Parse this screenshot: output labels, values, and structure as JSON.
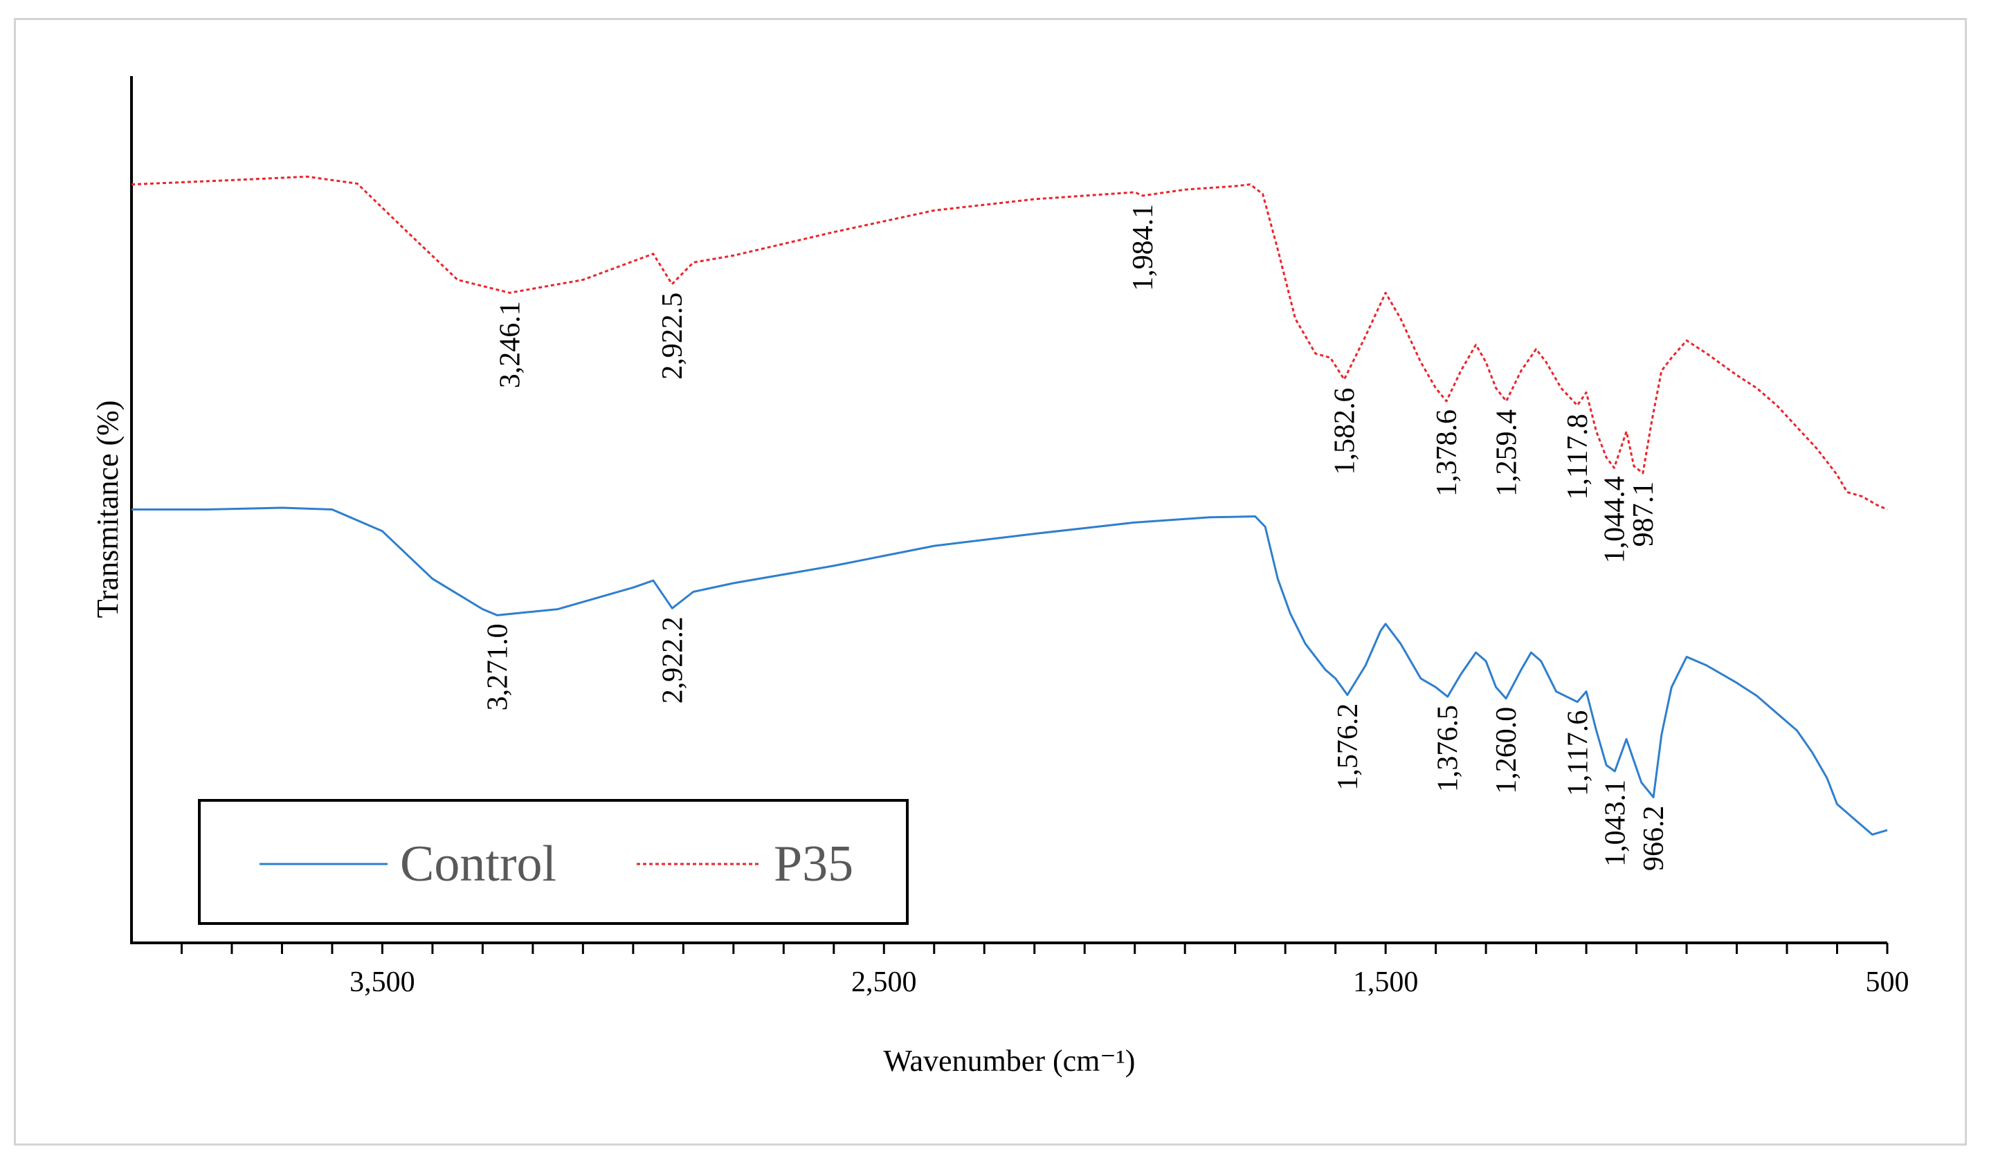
{
  "chart_data": {
    "type": "line",
    "title": "",
    "xlabel": "Wavenumber (cm⁻¹)",
    "ylabel": "Transmitance (%)",
    "xlim": [
      4000,
      500
    ],
    "x_reversed": true,
    "x_ticks": [
      3500,
      2500,
      1500,
      500
    ],
    "x_tick_labels": [
      "3,500",
      "2,500",
      "1,500",
      "500"
    ],
    "x_minor_step": 100,
    "ylim": [
      0,
      100
    ],
    "y_ticks_shown": false,
    "legend": {
      "position": "bottom-left",
      "entries": [
        "Control",
        "P35"
      ]
    },
    "series": [
      {
        "name": "P35",
        "color": "#e8262c",
        "style": "dotted",
        "points": [
          [
            4000,
            87.5
          ],
          [
            3800,
            88.0
          ],
          [
            3650,
            88.4
          ],
          [
            3550,
            87.6
          ],
          [
            3450,
            82.0
          ],
          [
            3350,
            76.5
          ],
          [
            3246.1,
            75.0
          ],
          [
            3100,
            76.5
          ],
          [
            2960,
            79.5
          ],
          [
            2922.5,
            76.0
          ],
          [
            2880,
            78.5
          ],
          [
            2800,
            79.3
          ],
          [
            2600,
            82.0
          ],
          [
            2400,
            84.5
          ],
          [
            2200,
            85.8
          ],
          [
            2000,
            86.6
          ],
          [
            1984.1,
            86.2
          ],
          [
            1900,
            86.9
          ],
          [
            1800,
            87.3
          ],
          [
            1770,
            87.5
          ],
          [
            1745,
            86.4
          ],
          [
            1715,
            80.0
          ],
          [
            1680,
            72.0
          ],
          [
            1640,
            68.0
          ],
          [
            1610,
            67.5
          ],
          [
            1582.6,
            65.0
          ],
          [
            1540,
            70.0
          ],
          [
            1500,
            75.0
          ],
          [
            1470,
            72.0
          ],
          [
            1430,
            67.0
          ],
          [
            1400,
            64.0
          ],
          [
            1378.6,
            62.5
          ],
          [
            1350,
            66.0
          ],
          [
            1320,
            69.0
          ],
          [
            1300,
            67.0
          ],
          [
            1280,
            64.0
          ],
          [
            1259.4,
            62.5
          ],
          [
            1230,
            66.0
          ],
          [
            1200,
            68.5
          ],
          [
            1180,
            67.0
          ],
          [
            1150,
            64.0
          ],
          [
            1117.8,
            62.0
          ],
          [
            1100,
            63.5
          ],
          [
            1080,
            59.0
          ],
          [
            1060,
            56.0
          ],
          [
            1044.4,
            54.8
          ],
          [
            1020,
            59.0
          ],
          [
            1005,
            55.0
          ],
          [
            987.1,
            54.2
          ],
          [
            970,
            60.0
          ],
          [
            950,
            66.0
          ],
          [
            930,
            67.5
          ],
          [
            900,
            69.5
          ],
          [
            860,
            68.0
          ],
          [
            800,
            65.5
          ],
          [
            760,
            64.0
          ],
          [
            720,
            62.0
          ],
          [
            680,
            59.5
          ],
          [
            640,
            57.0
          ],
          [
            600,
            54.0
          ],
          [
            580,
            52.0
          ],
          [
            550,
            51.5
          ],
          [
            520,
            50.5
          ],
          [
            500,
            50.0
          ]
        ]
      },
      {
        "name": "Control",
        "color": "#2e7fcd",
        "style": "solid",
        "points": [
          [
            4000,
            50.0
          ],
          [
            3850,
            50.0
          ],
          [
            3700,
            50.2
          ],
          [
            3600,
            50.0
          ],
          [
            3500,
            47.5
          ],
          [
            3400,
            42.0
          ],
          [
            3300,
            38.5
          ],
          [
            3271.0,
            37.8
          ],
          [
            3150,
            38.5
          ],
          [
            3000,
            41.0
          ],
          [
            2960,
            41.8
          ],
          [
            2922.2,
            38.6
          ],
          [
            2880,
            40.5
          ],
          [
            2800,
            41.5
          ],
          [
            2600,
            43.5
          ],
          [
            2400,
            45.8
          ],
          [
            2200,
            47.2
          ],
          [
            2000,
            48.5
          ],
          [
            1850,
            49.1
          ],
          [
            1760,
            49.2
          ],
          [
            1740,
            48.0
          ],
          [
            1715,
            42.0
          ],
          [
            1690,
            38.0
          ],
          [
            1660,
            34.5
          ],
          [
            1620,
            31.5
          ],
          [
            1600,
            30.5
          ],
          [
            1576.2,
            28.6
          ],
          [
            1540,
            32.0
          ],
          [
            1510,
            36.0
          ],
          [
            1500,
            36.8
          ],
          [
            1470,
            34.5
          ],
          [
            1430,
            30.5
          ],
          [
            1400,
            29.5
          ],
          [
            1376.5,
            28.4
          ],
          [
            1350,
            31.0
          ],
          [
            1320,
            33.5
          ],
          [
            1300,
            32.5
          ],
          [
            1280,
            29.5
          ],
          [
            1260.0,
            28.2
          ],
          [
            1230,
            31.5
          ],
          [
            1210,
            33.5
          ],
          [
            1190,
            32.5
          ],
          [
            1160,
            29.0
          ],
          [
            1117.6,
            27.8
          ],
          [
            1100,
            29.0
          ],
          [
            1080,
            24.5
          ],
          [
            1060,
            20.5
          ],
          [
            1043.1,
            19.8
          ],
          [
            1020,
            23.5
          ],
          [
            1005,
            21.0
          ],
          [
            990,
            18.5
          ],
          [
            966.2,
            16.8
          ],
          [
            950,
            24.0
          ],
          [
            930,
            29.5
          ],
          [
            900,
            33.0
          ],
          [
            860,
            32.0
          ],
          [
            800,
            30.0
          ],
          [
            760,
            28.5
          ],
          [
            720,
            26.5
          ],
          [
            680,
            24.5
          ],
          [
            650,
            22.0
          ],
          [
            620,
            19.0
          ],
          [
            600,
            16.0
          ],
          [
            560,
            14.0
          ],
          [
            530,
            12.5
          ],
          [
            500,
            13.0
          ]
        ]
      }
    ],
    "annotations": [
      {
        "series": "P35",
        "x": 3246.1,
        "label": "3,246.1"
      },
      {
        "series": "P35",
        "x": 2922.5,
        "label": "2,922.5"
      },
      {
        "series": "P35",
        "x": 1984.1,
        "label": "1,984.1"
      },
      {
        "series": "P35",
        "x": 1582.6,
        "label": "1,582.6"
      },
      {
        "series": "P35",
        "x": 1378.6,
        "label": "1,378.6"
      },
      {
        "series": "P35",
        "x": 1259.4,
        "label": "1,259.4"
      },
      {
        "series": "P35",
        "x": 1117.8,
        "label": "1,117.8"
      },
      {
        "series": "P35",
        "x": 1044.4,
        "label": "1,044.4"
      },
      {
        "series": "P35",
        "x": 987.1,
        "label": "987.1"
      },
      {
        "series": "Control",
        "x": 3271.0,
        "label": "3,271.0"
      },
      {
        "series": "Control",
        "x": 2922.2,
        "label": "2,922.2"
      },
      {
        "series": "Control",
        "x": 1576.2,
        "label": "1,576.2"
      },
      {
        "series": "Control",
        "x": 1376.5,
        "label": "1,376.5"
      },
      {
        "series": "Control",
        "x": 1260.0,
        "label": "1,260.0"
      },
      {
        "series": "Control",
        "x": 1117.6,
        "label": "1,117.6"
      },
      {
        "series": "Control",
        "x": 1043.1,
        "label": "1,043.1"
      },
      {
        "series": "Control",
        "x": 966.2,
        "label": "966.2"
      }
    ]
  }
}
